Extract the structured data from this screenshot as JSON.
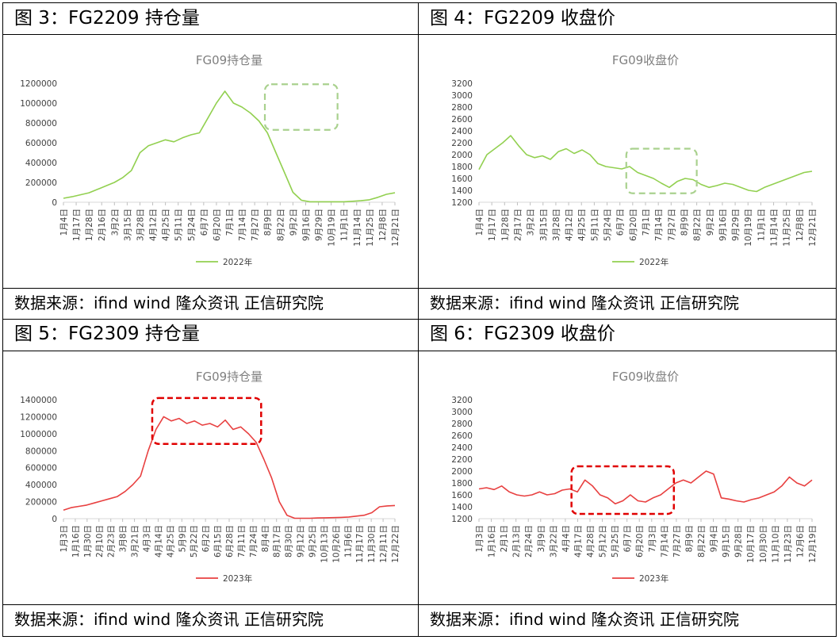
{
  "panels": [
    {
      "heading": "图 3：FG2209 持仓量",
      "source": "数据来源：ifind wind  隆众资讯  正信研究院",
      "chart_data": {
        "type": "line",
        "title": "FG09持仓量",
        "legend": "2022年",
        "legend_position": "bottom",
        "grid": false,
        "color": "#92d050",
        "highlight_color": "#a9d18e",
        "ylim": [
          0,
          1200000
        ],
        "yticks": [
          0,
          200000,
          400000,
          600000,
          800000,
          1000000,
          1200000
        ],
        "ytick_labels": [
          "0",
          "200000",
          "400000",
          "600000",
          "800000",
          "1000000",
          "1200000"
        ],
        "xticks": [
          "1月4日",
          "1月17日",
          "1月28日",
          "2月16日",
          "3月2日",
          "3月15日",
          "3月28日",
          "4月12日",
          "4月25日",
          "5月11日",
          "5月24日",
          "6月7日",
          "6月20日",
          "7月1日",
          "7月14日",
          "7月27日",
          "8月9日",
          "8月22日",
          "9月2日",
          "9月16日",
          "9月29日",
          "10月19日",
          "11月1日",
          "11月14日",
          "11月25日",
          "12月8日",
          "12月21日"
        ],
        "series": [
          {
            "values": [
              40000,
              55000,
              75000,
              95000,
              130000,
              165000,
              200000,
              250000,
              320000,
              500000,
              570000,
              600000,
              630000,
              610000,
              650000,
              680000,
              700000,
              850000,
              1000000,
              1120000,
              1000000,
              960000,
              900000,
              820000,
              700000,
              500000,
              300000,
              100000,
              20000,
              5000,
              5000,
              5000,
              5000,
              5000,
              10000,
              15000,
              25000,
              50000,
              80000,
              95000
            ]
          }
        ],
        "highlight": {
          "x_start": 15.8,
          "x_end": 21.5,
          "y_low": 730000,
          "y_high": 1190000
        }
      }
    },
    {
      "heading": "图 4：FG2209 收盘价",
      "source": "数据来源：ifind wind  隆众资讯  正信研究院",
      "chart_data": {
        "type": "line",
        "title": "FG09收盘价",
        "legend": "2022年",
        "legend_position": "bottom",
        "grid": false,
        "color": "#92d050",
        "highlight_color": "#a9d18e",
        "ylim": [
          1200,
          3200
        ],
        "yticks": [
          1200,
          1400,
          1600,
          1800,
          2000,
          2200,
          2400,
          2600,
          2800,
          3000,
          3200
        ],
        "ytick_labels": [
          "1200",
          "1400",
          "1600",
          "1800",
          "2000",
          "2200",
          "2400",
          "2600",
          "2800",
          "3000",
          "3200"
        ],
        "xticks": [
          "1月4日",
          "1月17日",
          "1月28日",
          "2月17日",
          "3月2日",
          "3月15日",
          "3月28日",
          "4月12日",
          "4月25日",
          "5月11日",
          "5月24日",
          "6月7日",
          "6月20日",
          "7月1日",
          "7月14日",
          "7月27日",
          "8月9日",
          "8月22日",
          "9月2日",
          "9月16日",
          "9月29日",
          "10月19日",
          "11月1日",
          "11月14日",
          "11月25日",
          "12月8日",
          "12月21日"
        ],
        "series": [
          {
            "values": [
              1750,
              2000,
              2100,
              2200,
              2320,
              2150,
              2000,
              1950,
              1980,
              1920,
              2050,
              2100,
              2020,
              2080,
              2000,
              1850,
              1800,
              1780,
              1760,
              1800,
              1700,
              1650,
              1600,
              1520,
              1450,
              1550,
              1600,
              1580,
              1500,
              1450,
              1480,
              1520,
              1500,
              1450,
              1400,
              1380,
              1450,
              1500,
              1550,
              1600,
              1650,
              1700,
              1720
            ]
          }
        ],
        "highlight": {
          "x_start": 11.5,
          "x_end": 17.0,
          "y_low": 1350,
          "y_high": 2100
        }
      }
    },
    {
      "heading": "图 5：FG2309 持仓量",
      "source": "数据来源：ifind wind  隆众资讯  正信研究院",
      "chart_data": {
        "type": "line",
        "title": "FG09持仓量",
        "legend": "2023年",
        "legend_position": "bottom",
        "grid": false,
        "color": "#e84040",
        "highlight_color": "#e00000",
        "ylim": [
          0,
          1400000
        ],
        "yticks": [
          0,
          200000,
          400000,
          600000,
          800000,
          1000000,
          1200000,
          1400000
        ],
        "ytick_labels": [
          "0",
          "200000",
          "400000",
          "600000",
          "800000",
          "1000000",
          "1200000",
          "1400000"
        ],
        "xticks": [
          "1月3日",
          "1月16日",
          "1月30日",
          "2月10日",
          "2月23日",
          "3月8日",
          "3月21日",
          "4月3日",
          "4月14日",
          "4月25日",
          "5月9日",
          "5月22日",
          "6月2日",
          "6月15日",
          "6月28日",
          "7月11日",
          "7月24日",
          "8月4日",
          "8月17日",
          "8月30日",
          "9月12日",
          "9月25日",
          "10月13日",
          "10月26日",
          "11月6日",
          "11月17日",
          "11月30日",
          "12月11日",
          "12月22日"
        ],
        "series": [
          {
            "values": [
              100000,
              130000,
              145000,
              160000,
              185000,
              210000,
              235000,
              260000,
              320000,
              400000,
              500000,
              800000,
              1050000,
              1200000,
              1150000,
              1180000,
              1120000,
              1150000,
              1100000,
              1120000,
              1080000,
              1160000,
              1050000,
              1080000,
              1000000,
              900000,
              700000,
              480000,
              200000,
              40000,
              5000,
              5000,
              5000,
              8000,
              10000,
              12000,
              15000,
              20000,
              30000,
              40000,
              70000,
              140000,
              150000,
              155000
            ]
          }
        ],
        "highlight": {
          "x_start": 7.5,
          "x_end": 16.7,
          "y_low": 880000,
          "y_high": 1420000
        }
      }
    },
    {
      "heading": "图 6：FG2309 收盘价",
      "source": "数据来源：ifind wind  隆众资讯  正信研究院",
      "chart_data": {
        "type": "line",
        "title": "FG09收盘价",
        "legend": "2023年",
        "legend_position": "bottom",
        "grid": false,
        "color": "#e84040",
        "highlight_color": "#e00000",
        "ylim": [
          1200,
          3200
        ],
        "yticks": [
          1200,
          1400,
          1600,
          1800,
          2000,
          2200,
          2400,
          2600,
          2800,
          3000,
          3200
        ],
        "ytick_labels": [
          "1200",
          "1400",
          "1600",
          "1800",
          "2000",
          "2200",
          "2400",
          "2600",
          "2800",
          "3000",
          "3200"
        ],
        "xticks": [
          "1月3日",
          "1月16日",
          "2月1日",
          "2月13日",
          "2月24日",
          "3月9日",
          "3月22日",
          "4月4日",
          "4月17日",
          "4月28日",
          "5月12日",
          "5月25日",
          "6月7日",
          "6月20日",
          "7月3日",
          "7月14日",
          "7月27日",
          "8月9日",
          "8月22日",
          "9月4日",
          "9月15日",
          "9月28日",
          "10月17日",
          "10月30日",
          "11月10日",
          "11月23日",
          "12月6日",
          "12月19日"
        ],
        "series": [
          {
            "values": [
              1700,
              1720,
              1690,
              1750,
              1650,
              1600,
              1580,
              1600,
              1650,
              1600,
              1620,
              1680,
              1700,
              1650,
              1850,
              1750,
              1600,
              1550,
              1450,
              1500,
              1600,
              1500,
              1480,
              1550,
              1600,
              1700,
              1800,
              1850,
              1800,
              1900,
              2000,
              1950,
              1550,
              1530,
              1500,
              1480,
              1520,
              1550,
              1600,
              1650,
              1750,
              1900,
              1800,
              1750,
              1850
            ]
          }
        ],
        "highlight": {
          "x_start": 7.5,
          "x_end": 15.8,
          "y_low": 1280,
          "y_high": 2080
        }
      }
    }
  ]
}
